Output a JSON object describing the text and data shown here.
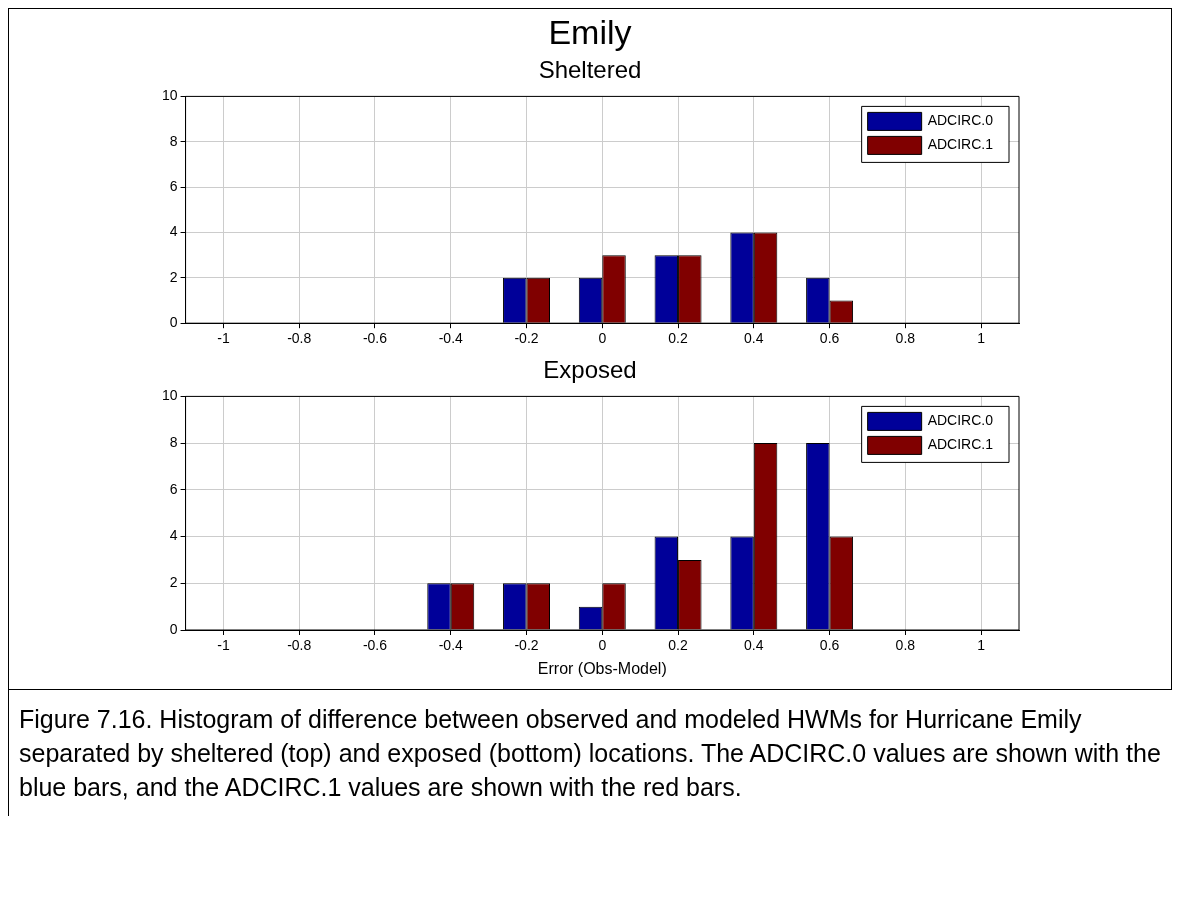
{
  "chart_data": [
    {
      "type": "bar",
      "title": "Emily",
      "subtitle": "Sheltered",
      "categories": [
        "-1",
        "-0.8",
        "-0.6",
        "-0.4",
        "-0.2",
        "0",
        "0.2",
        "0.4",
        "0.6",
        "0.8",
        "1"
      ],
      "series": [
        {
          "name": "ADCIRC.0",
          "color": "#000099",
          "values": [
            0,
            0,
            0,
            0,
            2,
            2,
            3,
            4,
            2,
            0,
            0
          ]
        },
        {
          "name": "ADCIRC.1",
          "color": "#800000",
          "values": [
            0,
            0,
            0,
            0,
            2,
            3,
            3,
            4,
            1,
            0,
            0
          ]
        }
      ],
      "ylim": [
        0,
        10
      ],
      "yticks": [
        0,
        2,
        4,
        6,
        8,
        10
      ],
      "grid": true,
      "legend": "top right"
    },
    {
      "type": "bar",
      "title": "Exposed",
      "xlabel": "Error (Obs-Model)",
      "categories": [
        "-1",
        "-0.8",
        "-0.6",
        "-0.4",
        "-0.2",
        "0",
        "0.2",
        "0.4",
        "0.6",
        "0.8",
        "1"
      ],
      "series": [
        {
          "name": "ADCIRC.0",
          "color": "#000099",
          "values": [
            0,
            0,
            0,
            2,
            2,
            1,
            4,
            4,
            8,
            0,
            0
          ]
        },
        {
          "name": "ADCIRC.1",
          "color": "#800000",
          "values": [
            0,
            0,
            0,
            2,
            2,
            2,
            3,
            8,
            4,
            0,
            0
          ]
        }
      ],
      "ylim": [
        0,
        10
      ],
      "yticks": [
        0,
        2,
        4,
        6,
        8,
        10
      ],
      "grid": true,
      "legend": "top right",
      "annotations": [
        "Figure 7.16.  Histogram of difference between observed and modeled HWMs for Hurricane Emily separated by sheltered (top) and exposed (bottom) locations.  The ADCIRC.0 values are shown with the blue bars, and the ADCIRC.1 values are shown with the red bars."
      ]
    }
  ]
}
